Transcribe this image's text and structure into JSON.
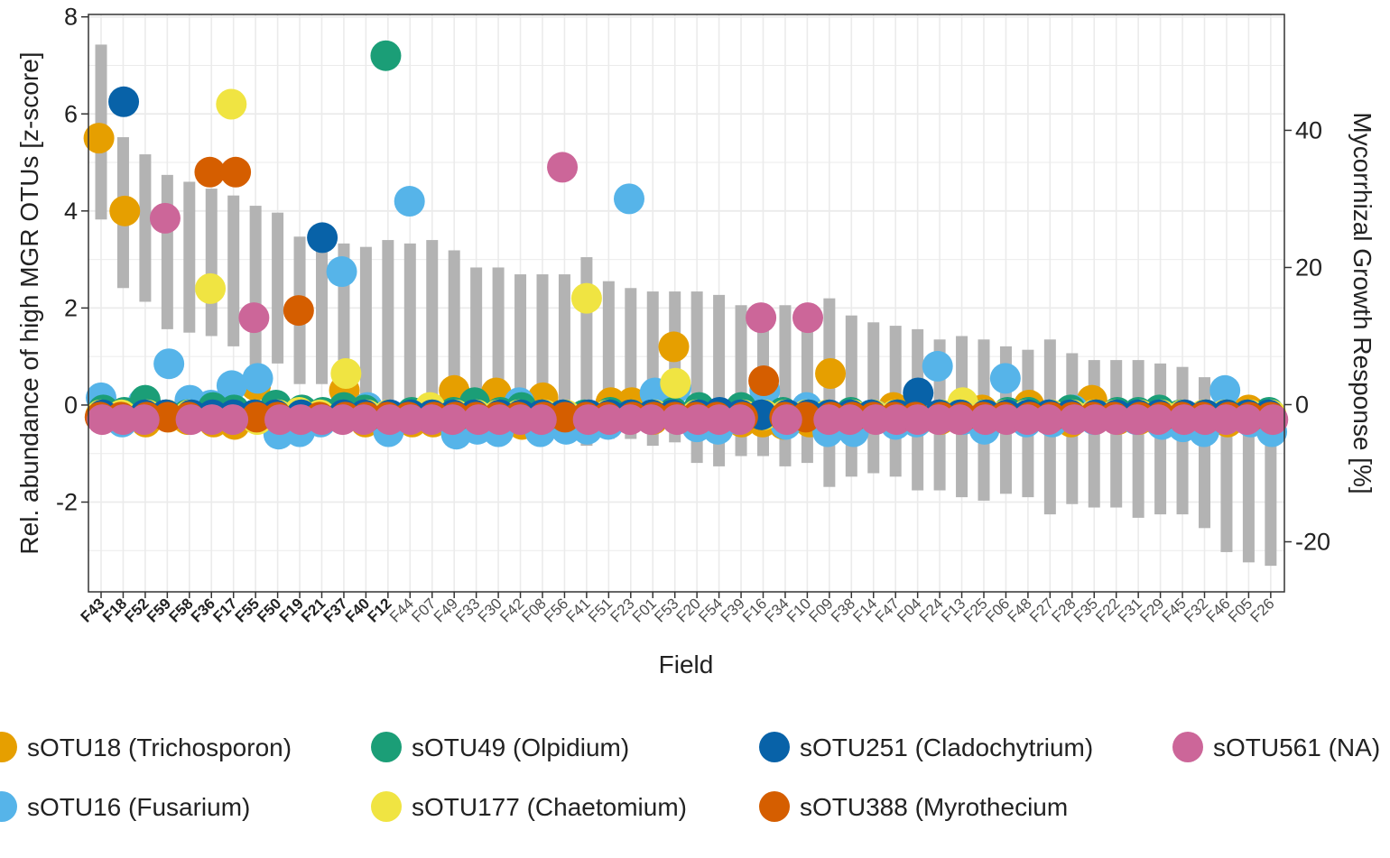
{
  "chart_data": {
    "type": "scatter",
    "xlabel": "Field",
    "ylabel": "Rel. abundance of high MGR OTUs [z-score]",
    "y2label": "Mycorrhizal Growth Response [%]",
    "ylim": [
      -3.85,
      8.05
    ],
    "y2lim": [
      -27.3,
      56.9
    ],
    "yticks": [
      "8",
      "6",
      "4",
      "2",
      "0",
      "-2"
    ],
    "y2ticks": [
      "40",
      "20",
      "0",
      "-20"
    ],
    "grid": true,
    "legend_position": "bottom",
    "categories": [
      "F43",
      "F18",
      "F52",
      "F59",
      "F58",
      "F36",
      "F17",
      "F55",
      "F50",
      "F19",
      "F21",
      "F37",
      "F40",
      "F12",
      "F44",
      "F07",
      "F49",
      "F33",
      "F30",
      "F42",
      "F08",
      "F56",
      "F41",
      "F51",
      "F23",
      "F01",
      "F53",
      "F20",
      "F54",
      "F39",
      "F16",
      "F34",
      "F10",
      "F09",
      "F38",
      "F14",
      "F47",
      "F04",
      "F24",
      "F13",
      "F25",
      "F06",
      "F48",
      "F27",
      "F28",
      "F35",
      "F22",
      "F31",
      "F29",
      "F45",
      "F32",
      "F46",
      "F05",
      "F26"
    ],
    "bold_categories": [
      "F43",
      "F18",
      "F52",
      "F59",
      "F58",
      "F36",
      "F17",
      "F55",
      "F50",
      "F19",
      "F21",
      "F37",
      "F40",
      "F12"
    ],
    "mgr_bars": {
      "name": "Mycorrhizal Growth Response",
      "color": "#b3b3b3",
      "low": [
        27.0,
        17.0,
        15.0,
        11.0,
        10.5,
        10.0,
        8.5,
        5.5,
        6.0,
        3.0,
        3.0,
        2.5,
        0.5,
        -0.5,
        -1.5,
        -2.0,
        -2.5,
        -2.5,
        -2.5,
        -3.0,
        -3.5,
        -4.0,
        -6.0,
        -5.0,
        -5.0,
        -6.0,
        -5.5,
        -8.5,
        -9.0,
        -7.5,
        -7.5,
        -9.0,
        -8.5,
        -12.0,
        -10.5,
        -10.0,
        -10.5,
        -12.5,
        -12.5,
        -13.5,
        -14.0,
        -13.0,
        -13.5,
        -16.0,
        -14.5,
        -15.0,
        -15.0,
        -16.5,
        -16.0,
        -16.0,
        -18.0,
        -21.5,
        -23.0,
        -23.5
      ],
      "high": [
        52.5,
        39.0,
        36.5,
        33.5,
        32.5,
        31.5,
        30.5,
        29.0,
        28.0,
        24.5,
        24.0,
        23.5,
        23.0,
        24.0,
        23.5,
        24.0,
        22.5,
        20.0,
        20.0,
        19.0,
        19.0,
        19.0,
        21.5,
        18.0,
        17.0,
        16.5,
        16.5,
        16.5,
        16.0,
        14.5,
        14.0,
        14.5,
        13.5,
        15.5,
        13.0,
        12.0,
        11.5,
        11.0,
        9.5,
        10.0,
        9.5,
        8.5,
        8.0,
        9.5,
        7.5,
        6.5,
        6.5,
        6.5,
        6.0,
        5.5,
        4.0,
        1.0,
        -0.5,
        -2.5
      ]
    },
    "series": [
      {
        "name": "sOTU18 (Trichosporon)",
        "color": "#E69F00",
        "y": [
          5.5,
          4.0,
          -0.35,
          -0.2,
          -0.3,
          -0.35,
          -0.4,
          0.4,
          -0.25,
          -0.3,
          -0.25,
          0.3,
          -0.35,
          -0.3,
          -0.35,
          -0.35,
          0.3,
          -0.35,
          0.25,
          -0.4,
          0.15,
          -0.3,
          -0.35,
          0.05,
          0.05,
          -0.3,
          1.2,
          -0.3,
          -0.3,
          -0.35,
          -0.35,
          -0.4,
          -0.35,
          0.65,
          -0.35,
          -0.25,
          -0.05,
          -0.3,
          -0.3,
          -0.3,
          -0.1,
          -0.25,
          0.0,
          -0.3,
          -0.35,
          0.1,
          -0.3,
          -0.3,
          -0.35,
          -0.3,
          -0.3,
          -0.35,
          -0.1,
          -0.3
        ]
      },
      {
        "name": "sOTU16 (Fusarium)",
        "color": "#56B4E9",
        "y": [
          0.15,
          -0.35,
          0.05,
          0.85,
          0.1,
          0.0,
          0.4,
          0.55,
          -0.6,
          -0.55,
          -0.35,
          2.75,
          -0.05,
          -0.55,
          4.2,
          -0.2,
          -0.6,
          -0.5,
          -0.55,
          0.05,
          -0.55,
          -0.5,
          -0.5,
          -0.4,
          4.25,
          0.25,
          0.35,
          -0.45,
          -0.5,
          -0.3,
          0.3,
          -0.4,
          -0.05,
          -0.55,
          -0.55,
          -0.2,
          -0.4,
          -0.35,
          0.8,
          -0.3,
          -0.5,
          0.55,
          -0.35,
          -0.35,
          -0.1,
          -0.3,
          -0.25,
          -0.3,
          -0.4,
          -0.45,
          -0.55,
          0.3,
          -0.35,
          -0.55
        ]
      },
      {
        "name": "sOTU49 (Olpidium)",
        "color": "#1B9E77",
        "y": [
          -0.1,
          -0.15,
          0.1,
          -0.2,
          -0.2,
          -0.05,
          -0.1,
          -0.2,
          0.0,
          -0.1,
          -0.15,
          -0.05,
          -0.1,
          7.2,
          -0.15,
          -0.2,
          -0.15,
          0.05,
          -0.15,
          -0.05,
          -0.2,
          -0.2,
          -0.2,
          -0.15,
          -0.2,
          -0.2,
          -0.15,
          -0.05,
          -0.2,
          -0.05,
          -0.2,
          -0.15,
          -0.2,
          -0.25,
          -0.15,
          -0.2,
          -0.2,
          -0.1,
          -0.2,
          -0.2,
          -0.2,
          -0.15,
          -0.15,
          -0.2,
          -0.1,
          -0.2,
          -0.15,
          -0.15,
          -0.1,
          -0.2,
          -0.2,
          -0.2,
          -0.2,
          -0.15
        ]
      },
      {
        "name": "sOTU177 (Chaetomium)",
        "color": "#F0E442",
        "y": [
          -0.2,
          -0.2,
          -0.2,
          -0.25,
          -0.2,
          2.4,
          6.2,
          -0.3,
          -0.2,
          -0.15,
          -0.2,
          0.65,
          -0.2,
          -0.2,
          -0.25,
          -0.05,
          -0.2,
          -0.2,
          -0.2,
          -0.2,
          -0.2,
          -0.2,
          2.2,
          -0.2,
          -0.25,
          -0.2,
          0.45,
          -0.2,
          -0.2,
          -0.2,
          -0.2,
          -0.2,
          -0.2,
          -0.2,
          -0.2,
          -0.2,
          -0.2,
          -0.2,
          -0.2,
          0.05,
          -0.2,
          -0.2,
          -0.2,
          -0.2,
          -0.2,
          -0.2,
          -0.2,
          -0.2,
          -0.2,
          -0.2,
          -0.2,
          -0.2,
          -0.2,
          -0.2
        ]
      },
      {
        "name": "sOTU251 (Cladochytrium)",
        "color": "#0862A8",
        "y": [
          -0.2,
          6.25,
          -0.2,
          -0.2,
          -0.2,
          -0.2,
          -0.2,
          -0.2,
          -0.2,
          -0.2,
          3.45,
          -0.2,
          -0.2,
          -0.2,
          -0.2,
          -0.2,
          -0.2,
          -0.2,
          -0.2,
          -0.2,
          -0.2,
          -0.2,
          -0.2,
          -0.2,
          -0.2,
          -0.2,
          -0.2,
          -0.2,
          -0.15,
          -0.2,
          -0.2,
          -0.2,
          -0.2,
          -0.2,
          -0.2,
          -0.2,
          -0.2,
          0.25,
          -0.2,
          -0.2,
          -0.2,
          -0.2,
          -0.2,
          -0.2,
          -0.2,
          -0.2,
          -0.2,
          -0.2,
          -0.2,
          -0.2,
          -0.2,
          -0.2,
          -0.2,
          -0.2
        ]
      },
      {
        "name": "sOTU388 (Myrothecium",
        "color": "#D55E00",
        "y": [
          -0.25,
          -0.25,
          -0.25,
          -0.25,
          -0.25,
          4.8,
          4.8,
          -0.25,
          -0.25,
          1.95,
          -0.25,
          -0.25,
          -0.25,
          -0.25,
          -0.25,
          -0.25,
          -0.25,
          -0.25,
          -0.25,
          -0.25,
          -0.25,
          -0.25,
          -0.25,
          -0.25,
          -0.25,
          -0.25,
          -0.25,
          -0.25,
          -0.25,
          -0.25,
          0.5,
          -0.25,
          -0.25,
          -0.25,
          -0.25,
          -0.25,
          -0.25,
          -0.25,
          -0.25,
          -0.25,
          -0.25,
          -0.25,
          -0.25,
          -0.25,
          -0.25,
          -0.25,
          -0.25,
          -0.25,
          -0.25,
          -0.25,
          -0.25,
          -0.25,
          -0.25,
          -0.25
        ]
      },
      {
        "name": "sOTU561 (NA)",
        "color": "#CC6699",
        "y": [
          -0.3,
          -0.3,
          -0.3,
          3.85,
          -0.3,
          -0.3,
          -0.3,
          1.8,
          -0.3,
          -0.3,
          -0.3,
          -0.3,
          -0.3,
          -0.3,
          -0.3,
          -0.3,
          -0.3,
          -0.3,
          -0.3,
          -0.3,
          -0.3,
          4.9,
          -0.3,
          -0.3,
          -0.3,
          -0.3,
          -0.3,
          -0.3,
          -0.3,
          -0.3,
          1.8,
          -0.3,
          1.8,
          -0.3,
          -0.3,
          -0.3,
          -0.3,
          -0.3,
          -0.3,
          -0.3,
          -0.3,
          -0.3,
          -0.3,
          -0.3,
          -0.3,
          -0.3,
          -0.3,
          -0.3,
          -0.3,
          -0.3,
          -0.3,
          -0.3,
          -0.3,
          -0.3
        ]
      }
    ]
  }
}
